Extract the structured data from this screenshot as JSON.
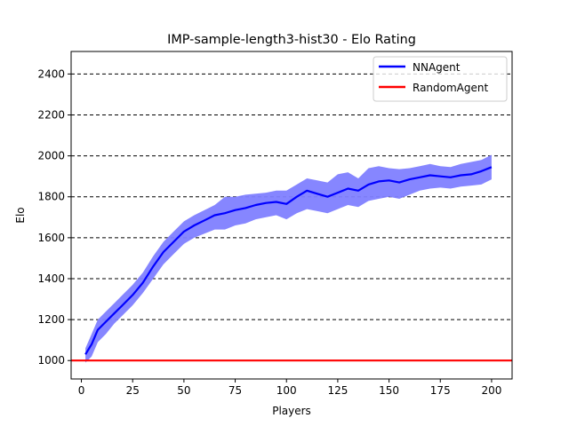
{
  "chart_data": {
    "type": "line",
    "title": "IMP-sample-length3-hist30 - Elo Rating",
    "xlabel": "Players",
    "ylabel": "Elo",
    "xlim": [
      -5,
      210
    ],
    "ylim": [
      910,
      2510
    ],
    "xticks": [
      0,
      25,
      50,
      75,
      100,
      125,
      150,
      175,
      200
    ],
    "yticks": [
      1000,
      1200,
      1400,
      1600,
      1800,
      2000,
      2200,
      2400
    ],
    "grid": "horizontal dashed at y ticks",
    "legend_position": "top-right",
    "series": [
      {
        "name": "NNAgent",
        "color": "#0000ff",
        "band_color": "#8080ff",
        "x": [
          2,
          5,
          8,
          12,
          16,
          20,
          25,
          30,
          35,
          40,
          45,
          50,
          55,
          60,
          65,
          70,
          75,
          80,
          85,
          90,
          95,
          100,
          105,
          110,
          115,
          120,
          125,
          130,
          135,
          140,
          145,
          150,
          155,
          160,
          165,
          170,
          175,
          180,
          185,
          190,
          195,
          200
        ],
        "values": [
          1030,
          1080,
          1150,
          1190,
          1230,
          1270,
          1320,
          1380,
          1460,
          1530,
          1580,
          1630,
          1660,
          1685,
          1710,
          1720,
          1735,
          1745,
          1760,
          1770,
          1775,
          1765,
          1800,
          1830,
          1815,
          1800,
          1820,
          1840,
          1830,
          1860,
          1875,
          1880,
          1870,
          1885,
          1895,
          1905,
          1900,
          1895,
          1905,
          1910,
          1925,
          1945
        ],
        "band_upper": [
          1060,
          1130,
          1200,
          1240,
          1280,
          1320,
          1370,
          1430,
          1510,
          1580,
          1630,
          1680,
          1710,
          1735,
          1760,
          1800,
          1800,
          1810,
          1815,
          1820,
          1830,
          1830,
          1860,
          1890,
          1880,
          1870,
          1910,
          1920,
          1890,
          1940,
          1950,
          1940,
          1935,
          1940,
          1950,
          1960,
          1950,
          1945,
          1960,
          1970,
          1980,
          2005
        ],
        "band_lower": [
          990,
          1020,
          1090,
          1130,
          1180,
          1220,
          1270,
          1330,
          1400,
          1470,
          1520,
          1570,
          1600,
          1620,
          1640,
          1640,
          1660,
          1670,
          1690,
          1700,
          1710,
          1690,
          1720,
          1740,
          1730,
          1720,
          1740,
          1760,
          1750,
          1780,
          1790,
          1800,
          1790,
          1810,
          1830,
          1840,
          1845,
          1840,
          1850,
          1855,
          1860,
          1885
        ]
      },
      {
        "name": "RandomAgent",
        "color": "#ff0000",
        "x": [
          -5,
          210
        ],
        "values": [
          1000,
          1000
        ]
      }
    ]
  }
}
